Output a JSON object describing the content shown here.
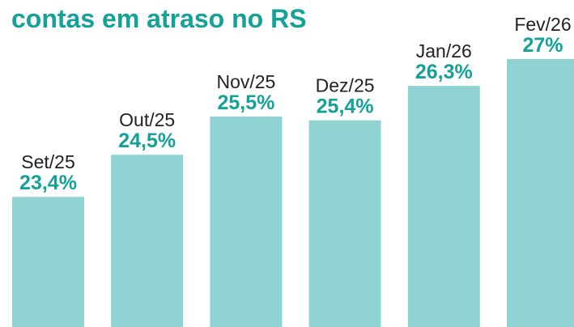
{
  "chart_data": {
    "type": "bar",
    "title": "contas em atraso no RS",
    "categories": [
      "Set/25",
      "Out/25",
      "Nov/25",
      "Dez/25",
      "Jan/26",
      "Fev/26"
    ],
    "values": [
      23.4,
      24.5,
      25.5,
      25.4,
      26.3,
      27
    ],
    "value_labels": [
      "23,4%",
      "24,5%",
      "25,5%",
      "25,4%",
      "26,3%",
      "27%"
    ],
    "color": "#8fd3d3",
    "label_color": "#13a198",
    "ylim": [
      20,
      27
    ]
  }
}
